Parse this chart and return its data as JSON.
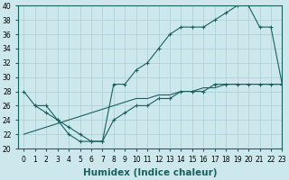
{
  "line1_x": [
    0,
    1,
    2,
    3,
    4,
    5,
    6,
    7,
    8,
    9,
    10,
    11,
    12,
    13,
    14,
    15,
    16,
    17,
    18,
    19,
    20,
    21,
    22,
    23
  ],
  "line1_y": [
    28,
    26,
    25,
    24,
    22,
    21,
    21,
    21,
    29,
    29,
    31,
    32,
    34,
    36,
    37,
    37,
    37,
    38,
    39,
    40,
    40,
    37,
    37,
    29
  ],
  "line2_x": [
    0,
    1,
    2,
    3,
    4,
    5,
    6,
    7,
    8,
    9,
    10,
    11,
    12,
    13,
    14,
    15,
    16,
    17,
    18,
    19,
    20,
    21,
    22,
    23
  ],
  "line2_y": [
    22,
    22.5,
    23,
    23.5,
    24,
    24.5,
    25,
    25.5,
    26,
    26.5,
    27,
    27,
    27.5,
    27.5,
    28,
    28,
    28.5,
    28.5,
    29,
    29,
    29,
    29,
    29,
    29
  ],
  "line3_x": [
    1,
    2,
    3,
    4,
    5,
    6,
    7,
    8,
    9,
    10,
    11,
    12,
    13,
    14,
    15,
    16,
    17,
    18,
    19,
    20,
    21,
    22,
    23
  ],
  "line3_y": [
    26,
    26,
    24,
    23,
    22,
    21,
    21,
    24,
    25,
    26,
    26,
    27,
    27,
    28,
    28,
    28,
    29,
    29,
    29,
    29,
    29,
    29,
    29
  ],
  "line_color": "#1a6060",
  "bg_color": "#cce8ec",
  "grid_color": "#aacfd4",
  "xlabel": "Humidex (Indice chaleur)",
  "xlim": [
    -0.5,
    23
  ],
  "ylim": [
    20,
    40
  ],
  "yticks": [
    20,
    22,
    24,
    26,
    28,
    30,
    32,
    34,
    36,
    38,
    40
  ],
  "xticks": [
    0,
    1,
    2,
    3,
    4,
    5,
    6,
    7,
    8,
    9,
    10,
    11,
    12,
    13,
    14,
    15,
    16,
    17,
    18,
    19,
    20,
    21,
    22,
    23
  ],
  "tick_fontsize": 5.5,
  "xlabel_fontsize": 7.5
}
